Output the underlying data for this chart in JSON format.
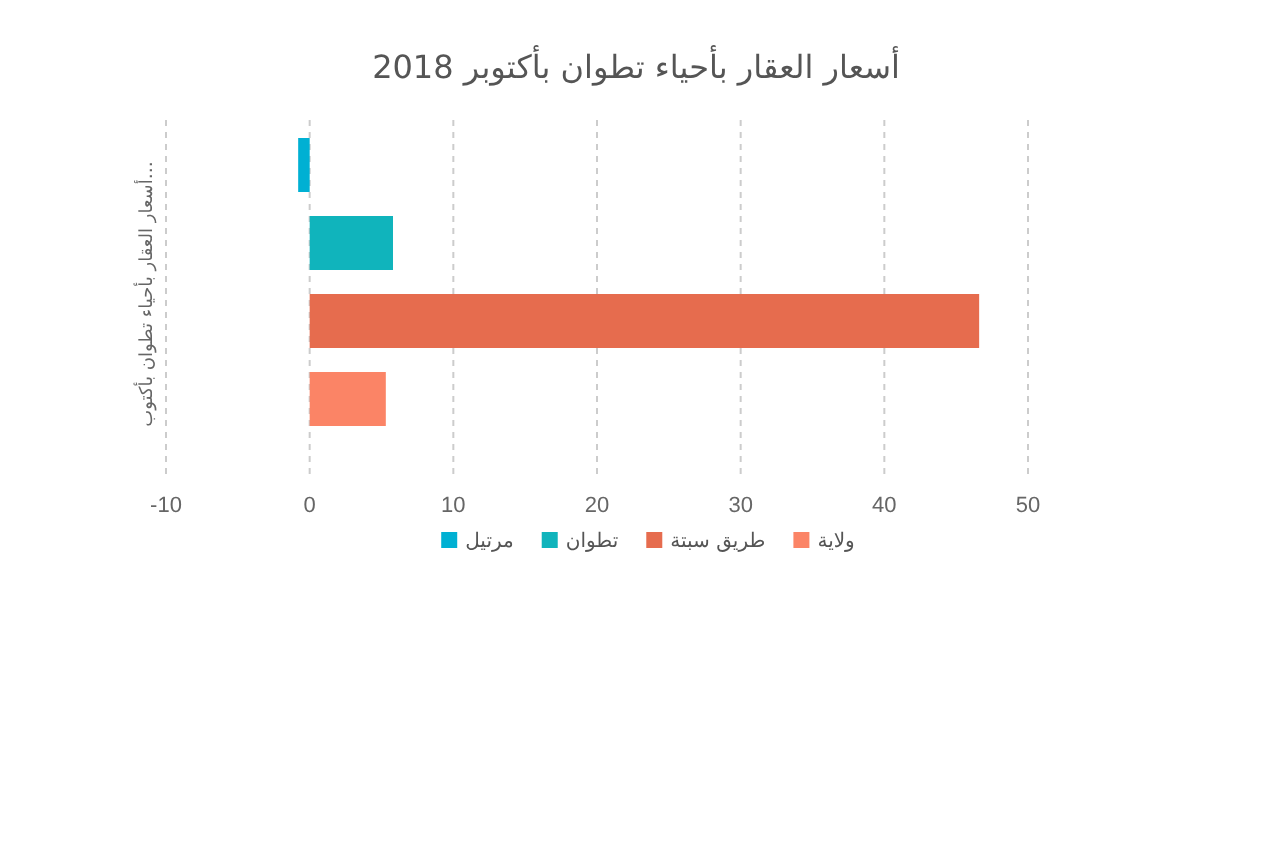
{
  "chart_data": {
    "type": "bar",
    "orientation": "horizontal",
    "title": "أسعار العقار بأحياء تطوان بأكتوبر 2018",
    "ylabel": "أسعار العقار بأحياء تطوان بأكتوب…",
    "categories": [
      null
    ],
    "series": [
      {
        "name": "مرتيل",
        "color": "#00B0D3",
        "values": [
          -0.8
        ]
      },
      {
        "name": "تطوان",
        "color": "#10B4BC",
        "values": [
          5.8
        ]
      },
      {
        "name": "طريق سبتة",
        "color": "#E66C4E",
        "values": [
          46.6
        ]
      },
      {
        "name": "ولاية",
        "color": "#FB8466",
        "values": [
          5.3
        ]
      }
    ],
    "xlim": [
      -10,
      50
    ],
    "xticks": [
      -10,
      0,
      10,
      20,
      30,
      40,
      50
    ],
    "grid": "x",
    "legend": "bottom"
  }
}
